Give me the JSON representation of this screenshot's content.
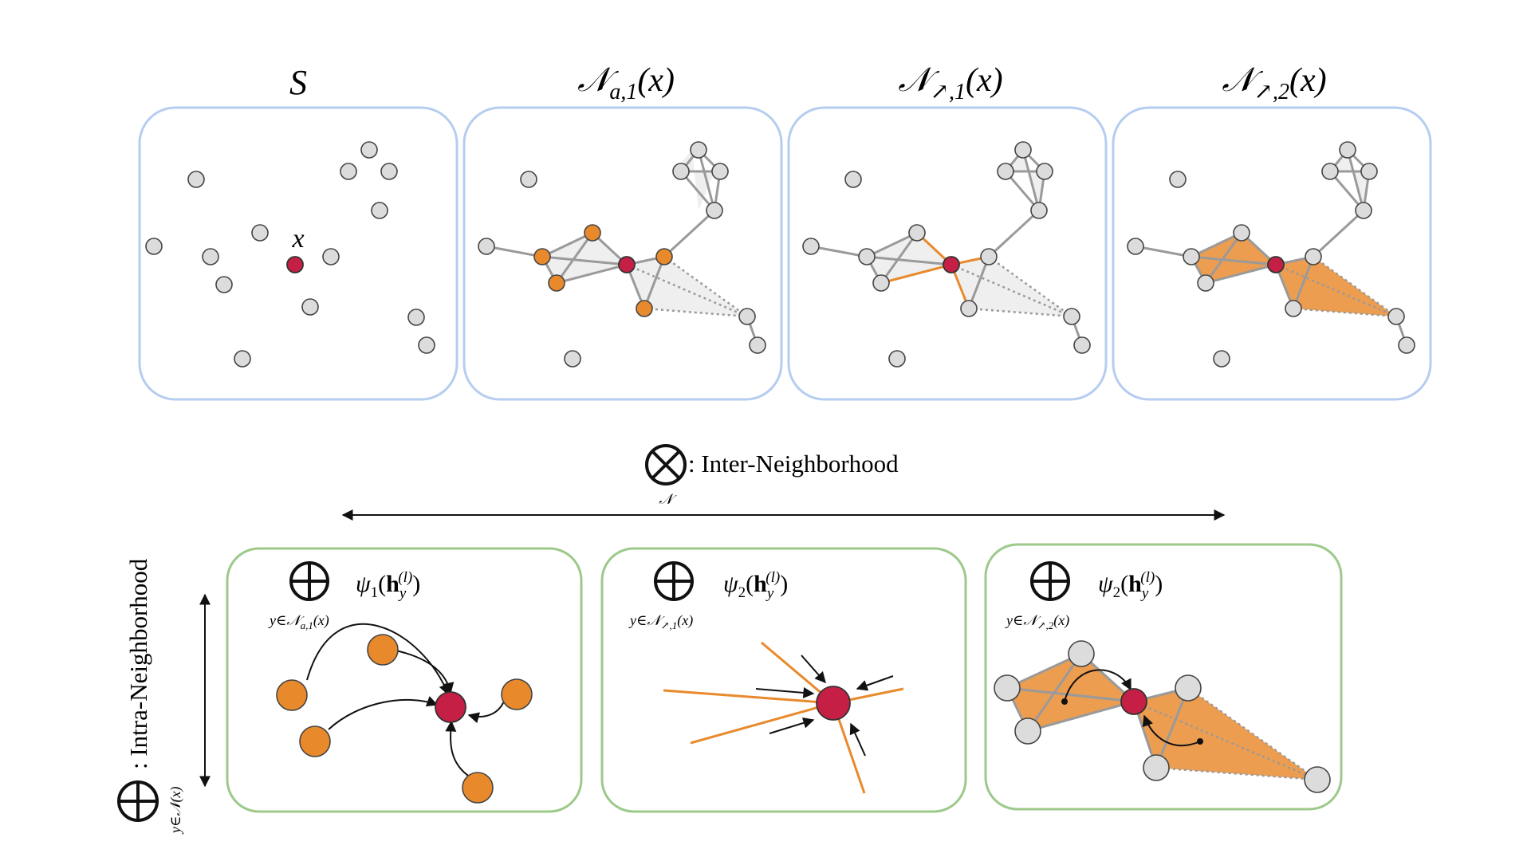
{
  "top_panels": [
    {
      "id": "S",
      "title": "S"
    },
    {
      "id": "Na1",
      "title_main": "𝒩",
      "title_sub": "a,1",
      "title_arg": "(x)"
    },
    {
      "id": "Nup1",
      "title_main": "𝒩",
      "title_sub": "↗,1",
      "title_arg": "(x)"
    },
    {
      "id": "Nup2",
      "title_main": "𝒩",
      "title_sub": "↗,2",
      "title_arg": "(x)"
    }
  ],
  "center_node_label": "x",
  "inter": {
    "symbol": "⊗",
    "subscript": "𝒩",
    "label": ": Inter-Neighborhood"
  },
  "intra": {
    "symbol": "⊕",
    "subscript": "y∈𝒩(x)",
    "label": ": Intra-Neighborhood"
  },
  "bottom_panels": [
    {
      "psi": "ψ",
      "psi_index": "1",
      "h": "h",
      "h_sub": "y",
      "h_sup": "(l)",
      "sum_sub": "y∈𝒩",
      "sum_sub2": "a,1",
      "sum_arg": "(x)"
    },
    {
      "psi": "ψ",
      "psi_index": "2",
      "h": "h",
      "h_sub": "y",
      "h_sup": "(l)",
      "sum_sub": "y∈𝒩",
      "sum_sub2": "↗,1",
      "sum_arg": "(x)"
    },
    {
      "psi": "ψ",
      "psi_index": "2",
      "h": "h",
      "h_sub": "y",
      "h_sup": "(l)",
      "sum_sub": "y∈𝒩",
      "sum_sub2": "↗,2",
      "sum_arg": "(x)"
    }
  ],
  "colors": {
    "panel_top_border": "#b5cdf0",
    "panel_bottom_border": "#9dc98a",
    "highlight": "#e88a2c",
    "center_node": "#c51f45",
    "gray_node": "#dcdcdc"
  }
}
